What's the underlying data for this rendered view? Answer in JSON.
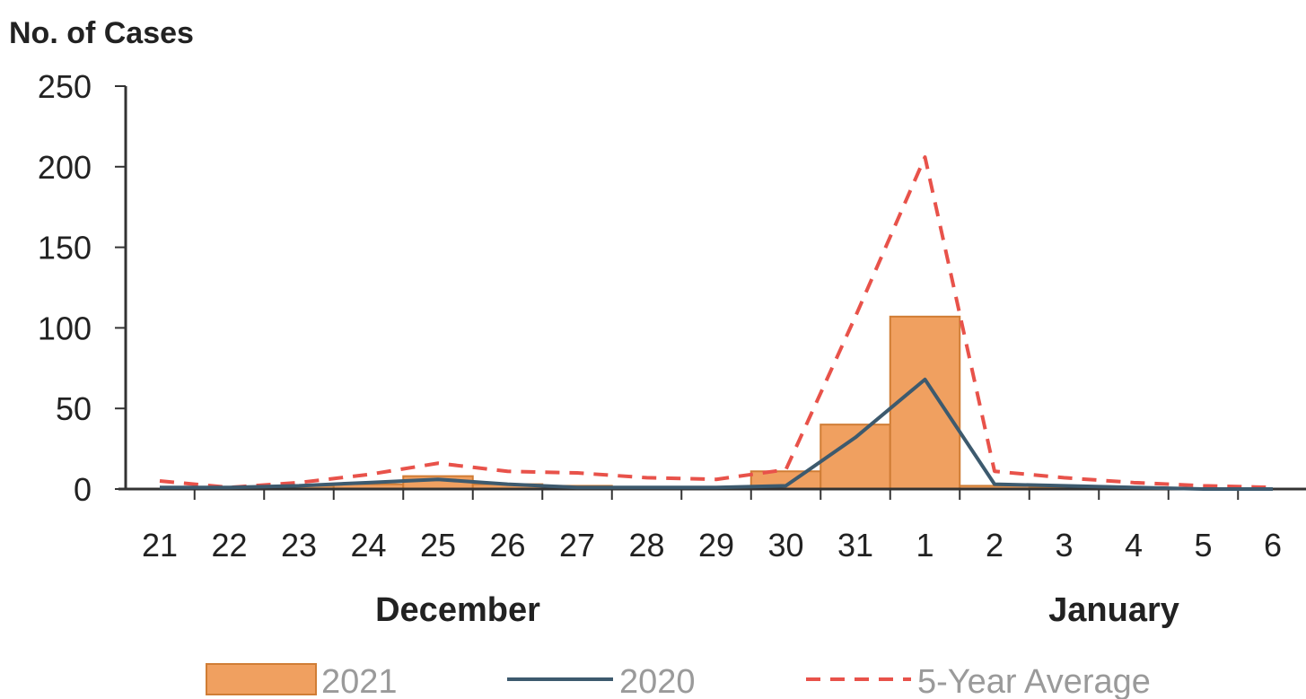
{
  "chart_data": {
    "type": "bar",
    "ylabel": "No. of Cases",
    "ylim": [
      0,
      250
    ],
    "yticks": [
      "0",
      "50",
      "100",
      "150",
      "200",
      "250"
    ],
    "categories": [
      "21",
      "22",
      "23",
      "24",
      "25",
      "26",
      "27",
      "28",
      "29",
      "30",
      "31",
      "1",
      "2",
      "3",
      "4",
      "5",
      "6"
    ],
    "months": [
      {
        "label": "December"
      },
      {
        "label": "January"
      }
    ],
    "series": [
      {
        "name": "2021",
        "type": "bar",
        "color": "#f0a060",
        "values": [
          0,
          1,
          2,
          3,
          8,
          3,
          2,
          1,
          1,
          11,
          40,
          107,
          2,
          1,
          0,
          0,
          0
        ]
      },
      {
        "name": "2020",
        "type": "line",
        "color": "#3d5a6e",
        "values": [
          1,
          1,
          2,
          4,
          6,
          3,
          1,
          1,
          1,
          2,
          32,
          68,
          3,
          2,
          1,
          0,
          0
        ]
      },
      {
        "name": "5-Year Average",
        "type": "dashed",
        "color": "#e8524a",
        "values": [
          5,
          1,
          4,
          9,
          16,
          11,
          10,
          7,
          6,
          12,
          107,
          206,
          11,
          7,
          4,
          2,
          1
        ]
      }
    ],
    "legend": {
      "position": "bottom",
      "items": [
        "2021",
        "2020",
        "5-Year Average"
      ]
    },
    "grid": false
  }
}
